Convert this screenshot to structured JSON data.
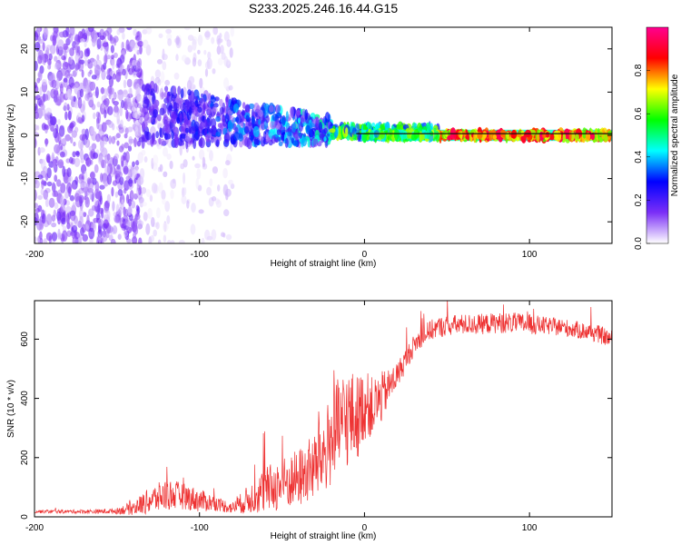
{
  "figure_title": "S233.2025.246.16.44.G15",
  "chart_data": [
    {
      "type": "heatmap",
      "id": "spectrogram",
      "title": "S233.2025.246.16.44.G15",
      "xlabel": "Height of straight line (km)",
      "ylabel": "Frequency (Hz)",
      "xlim": [
        -200,
        150
      ],
      "ylim": [
        -25,
        25
      ],
      "xticks": [
        -200,
        -100,
        0,
        100
      ],
      "yticks": [
        -20,
        -10,
        0,
        10,
        20
      ],
      "colorbar": {
        "label": "Normalized spectral amplitude",
        "range": [
          0,
          1
        ],
        "ticks": [
          "0.0",
          "0.2",
          "0.4",
          "0.6",
          "0.8"
        ],
        "tick_values": [
          0.0,
          0.2,
          0.4,
          0.6,
          0.8
        ],
        "colors": [
          "#ffffff",
          "#7b2ff7",
          "#0000ff",
          "#00ffff",
          "#00ff00",
          "#ffff00",
          "#ff0000",
          "#ff0090"
        ]
      },
      "description_bands": [
        {
          "x_range": [
            -200,
            -135
          ],
          "freq_spread_hz": 25,
          "amplitude": 0.1
        },
        {
          "x_range": [
            -135,
            -20
          ],
          "freq_center_hz_start": 5,
          "freq_center_hz_end": 1,
          "freq_spread_hz": 7,
          "amplitude": 0.25
        },
        {
          "x_range": [
            -20,
            45
          ],
          "freq_center_hz": 0.5,
          "freq_spread_hz": 1.5,
          "amplitude": 0.5
        },
        {
          "x_range": [
            45,
            150
          ],
          "freq_center_hz": 0,
          "freq_spread_hz": 1,
          "amplitude": 0.85
        }
      ]
    },
    {
      "type": "line",
      "id": "snr",
      "xlabel": "Height of straight line (km)",
      "ylabel": "SNR (10 * v/v)",
      "xlim": [
        -200,
        150
      ],
      "ylim": [
        0,
        730
      ],
      "xticks": [
        -200,
        -100,
        0,
        100
      ],
      "yticks": [
        0,
        200,
        400,
        600
      ],
      "line_color": "#ee3333",
      "series": [
        {
          "name": "SNR",
          "x": [
            -200,
            -180,
            -160,
            -150,
            -140,
            -130,
            -120,
            -110,
            -100,
            -90,
            -80,
            -70,
            -60,
            -50,
            -40,
            -30,
            -25,
            -20,
            -15,
            -10,
            -5,
            0,
            5,
            10,
            15,
            20,
            25,
            30,
            35,
            40,
            45,
            50,
            60,
            70,
            80,
            90,
            100,
            110,
            120,
            130,
            140,
            150
          ],
          "base": [
            18,
            18,
            18,
            20,
            30,
            55,
            75,
            70,
            55,
            45,
            30,
            60,
            90,
            110,
            130,
            170,
            210,
            260,
            300,
            340,
            330,
            380,
            370,
            400,
            440,
            480,
            530,
            580,
            610,
            630,
            640,
            645,
            650,
            650,
            655,
            655,
            650,
            645,
            640,
            630,
            620,
            600
          ],
          "amp": [
            6,
            6,
            8,
            10,
            25,
            45,
            55,
            45,
            40,
            25,
            20,
            50,
            80,
            90,
            100,
            120,
            140,
            160,
            180,
            170,
            150,
            120,
            100,
            90,
            60,
            45,
            40,
            35,
            35,
            35,
            35,
            35,
            35,
            35,
            35,
            35,
            35,
            30,
            30,
            30,
            30,
            30
          ]
        }
      ]
    }
  ]
}
